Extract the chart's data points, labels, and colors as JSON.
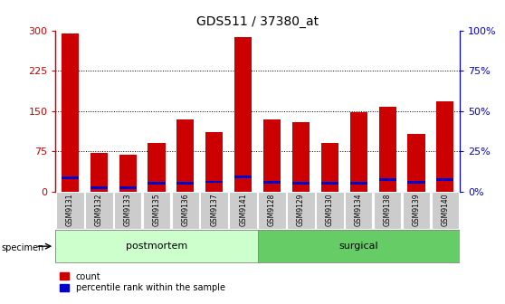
{
  "title": "GDS511 / 37380_at",
  "categories": [
    "GSM9131",
    "GSM9132",
    "GSM9133",
    "GSM9135",
    "GSM9136",
    "GSM9137",
    "GSM9141",
    "GSM9128",
    "GSM9129",
    "GSM9130",
    "GSM9134",
    "GSM9138",
    "GSM9139",
    "GSM9140"
  ],
  "count_values": [
    295,
    72,
    68,
    90,
    135,
    110,
    288,
    135,
    130,
    90,
    148,
    158,
    108,
    168
  ],
  "percentile_values": [
    25,
    7,
    7,
    15,
    15,
    18,
    27,
    17,
    16,
    16,
    16,
    22,
    17,
    22
  ],
  "groups": [
    {
      "label": "postmortem",
      "start": 0,
      "end": 7,
      "color": "#ccffcc"
    },
    {
      "label": "surgical",
      "start": 7,
      "end": 14,
      "color": "#66cc66"
    }
  ],
  "bar_color": "#cc0000",
  "percentile_color": "#0000cc",
  "left_yticks": [
    0,
    75,
    150,
    225,
    300
  ],
  "left_yticklabels": [
    "0",
    "75",
    "150",
    "225",
    "300"
  ],
  "right_yticks": [
    0,
    25,
    50,
    75,
    100
  ],
  "right_yticklabels": [
    "0%",
    "25%",
    "50%",
    "75%",
    "100%"
  ],
  "left_color": "#cc0000",
  "right_color": "#0000cc",
  "ylim": [
    0,
    300
  ],
  "right_ylim": [
    0,
    100
  ],
  "specimen_label": "specimen"
}
